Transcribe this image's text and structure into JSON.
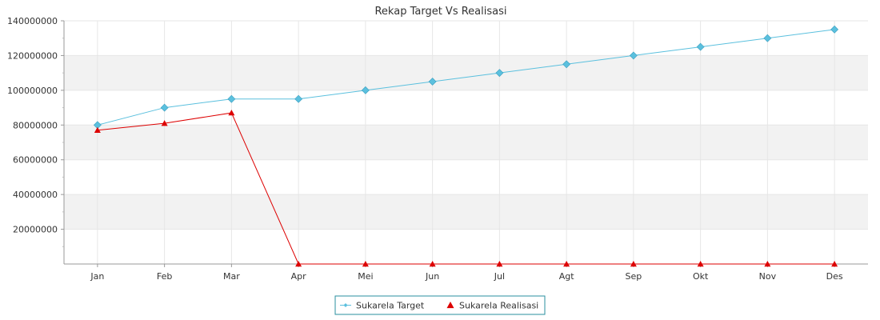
{
  "chart_data": {
    "type": "line",
    "title": "Rekap Target Vs Realisasi",
    "categories": [
      "Jan",
      "Feb",
      "Mar",
      "Apr",
      "Mei",
      "Jun",
      "Jul",
      "Agt",
      "Sep",
      "Okt",
      "Nov",
      "Des"
    ],
    "y_ticks": [
      "20000000",
      "40000000",
      "60000000",
      "80000000",
      "100000000",
      "120000000",
      "140000000"
    ],
    "ylim": [
      0,
      140000000
    ],
    "grid": true,
    "legend_position": "bottom-center",
    "series": [
      {
        "name": "Sukarela Target",
        "color": "#5bc0de",
        "marker": "diamond",
        "values": [
          80000000,
          90000000,
          95000000,
          95000000,
          100000000,
          105000000,
          110000000,
          115000000,
          120000000,
          125000000,
          130000000,
          135000000
        ]
      },
      {
        "name": "Sukarela Realisasi",
        "color": "#dd0000",
        "marker": "triangle",
        "values": [
          77000000,
          81000000,
          87000000,
          0,
          0,
          0,
          0,
          0,
          0,
          0,
          0,
          0
        ]
      }
    ]
  }
}
